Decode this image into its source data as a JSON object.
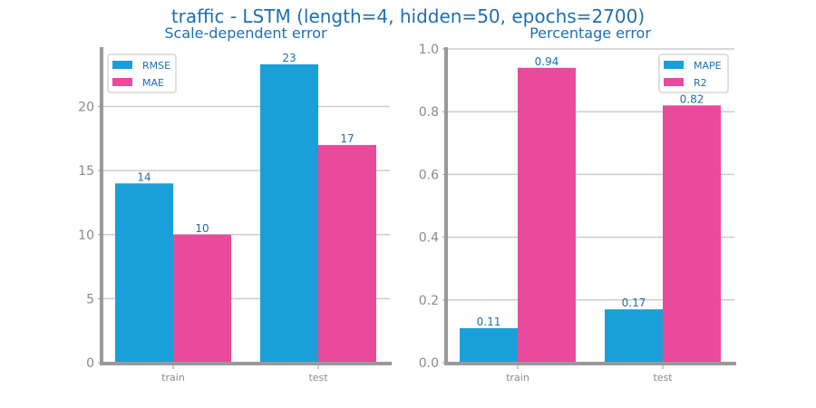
{
  "figure": {
    "title": "traffic - LSTM (length=4, hidden=50, epochs=2700)"
  },
  "colors": {
    "blue": "#1b9fd8",
    "pink": "#ea4a9b",
    "title": "#1f6fb0",
    "label": "#1f6fb0",
    "axis": "#999999",
    "tick_text": "#8a8a8a",
    "grid": "#cccccc"
  },
  "chart_data": [
    {
      "type": "bar",
      "title": "Scale-dependent error",
      "categories": [
        "train",
        "test"
      ],
      "series": [
        {
          "name": "RMSE",
          "values": [
            14,
            23.3
          ],
          "labels": [
            "14",
            "23"
          ]
        },
        {
          "name": "MAE",
          "values": [
            10,
            17
          ],
          "labels": [
            "10",
            "17"
          ]
        }
      ],
      "ylim": [
        0,
        24.5
      ],
      "yticks": [
        0,
        5,
        10,
        15,
        20
      ],
      "ytick_labels": [
        "0",
        "5",
        "10",
        "15",
        "20"
      ],
      "grid": true,
      "legend": "top-left"
    },
    {
      "type": "bar",
      "title": "Percentage error",
      "categories": [
        "train",
        "test"
      ],
      "series": [
        {
          "name": "MAPE",
          "values": [
            0.11,
            0.17
          ],
          "labels": [
            "0.11",
            "0.17"
          ]
        },
        {
          "name": "R2",
          "values": [
            0.94,
            0.82
          ],
          "labels": [
            "0.94",
            "0.82"
          ]
        }
      ],
      "ylim": [
        0,
        1.0
      ],
      "yticks": [
        0,
        0.2,
        0.4,
        0.6,
        0.8,
        1.0
      ],
      "ytick_labels": [
        "0.0",
        "0.2",
        "0.4",
        "0.6",
        "0.8",
        "1.0"
      ],
      "grid": true,
      "legend": "top-right"
    }
  ]
}
